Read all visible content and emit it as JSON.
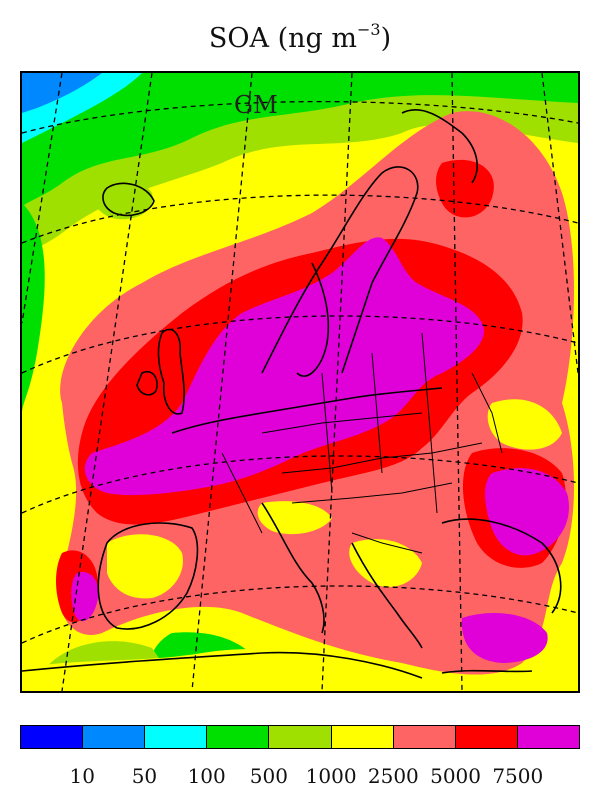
{
  "title": {
    "main": "SOA (ng m",
    "exponent": "−3",
    "close": ")"
  },
  "map": {
    "run_label": "GM",
    "variable": "SOA",
    "units": "ng m-3",
    "region": "Europe",
    "overlays": [
      "country-borders",
      "coastlines",
      "lat-lon-graticule"
    ]
  },
  "colorbar": {
    "colors": [
      "#0000ff",
      "#0088ff",
      "#00ffff",
      "#00e000",
      "#a0e000",
      "#ffff00",
      "#ff6464",
      "#ff0000",
      "#e000d8"
    ],
    "ticks": [
      "10",
      "50",
      "100",
      "500",
      "1000",
      "2500",
      "5000",
      "7500"
    ]
  }
}
